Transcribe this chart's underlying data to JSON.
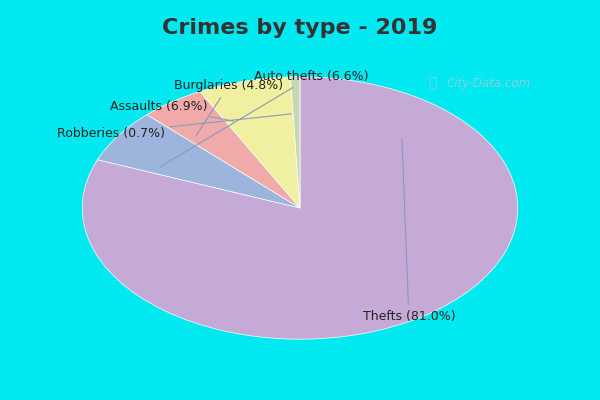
{
  "title": "Crimes by type - 2019",
  "labels": [
    "Thefts",
    "Auto thefts",
    "Burglaries",
    "Assaults",
    "Robberies"
  ],
  "values": [
    81.0,
    6.6,
    4.8,
    6.9,
    0.7
  ],
  "colors": [
    "#c5aad8",
    "#9db4dd",
    "#f0aaaa",
    "#f0f0a0",
    "#c8d8b0"
  ],
  "bg_cyan": "#00e8f0",
  "bg_chart": "#e8f5e8",
  "title_color": "#333333",
  "title_fontsize": 16,
  "label_fontsize": 9,
  "startangle": 90,
  "watermark": "City-Data.com"
}
